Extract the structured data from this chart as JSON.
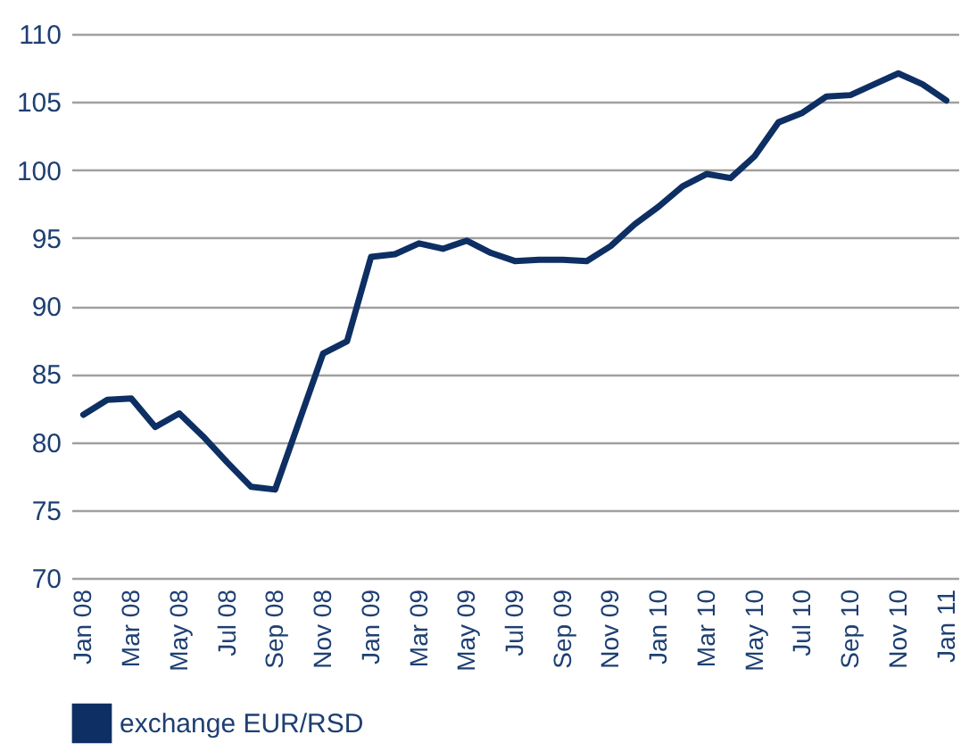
{
  "chart_data": {
    "type": "line",
    "categories": [
      "Jan 08",
      null,
      "Mar 08",
      null,
      "May 08",
      null,
      "Jul 08",
      null,
      "Sep 08",
      null,
      "Nov 08",
      null,
      "Jan 09",
      null,
      "Mar 09",
      null,
      "May 09",
      null,
      "Jul 09",
      null,
      "Sep 09",
      null,
      "Nov 09",
      null,
      "Jan 10",
      null,
      "Mar 10",
      null,
      "May 10",
      null,
      "Jul 10",
      null,
      "Sep 10",
      null,
      "Nov 10",
      null,
      "Jan 11"
    ],
    "series": [
      {
        "name": "exchange EUR/RSD",
        "color": "#0d2f63",
        "values": [
          82,
          83.1,
          83.2,
          81.1,
          82.1,
          80.4,
          78.5,
          76.7,
          76.5,
          81.5,
          86.5,
          87.4,
          93.6,
          93.8,
          94.6,
          94.2,
          94.8,
          93.9,
          93.3,
          93.4,
          93.4,
          93.3,
          94.4,
          96.0,
          97.3,
          98.8,
          99.7,
          99.4,
          101.0,
          103.5,
          104.2,
          105.4,
          105.5,
          106.3,
          107.1,
          106.3,
          105.1
        ]
      }
    ],
    "ylim": [
      70,
      110
    ],
    "yticks": [
      70,
      75,
      80,
      85,
      90,
      95,
      100,
      105,
      110
    ],
    "grid": "y",
    "legend": "bottom",
    "marker": "none",
    "line_style": "solid"
  }
}
